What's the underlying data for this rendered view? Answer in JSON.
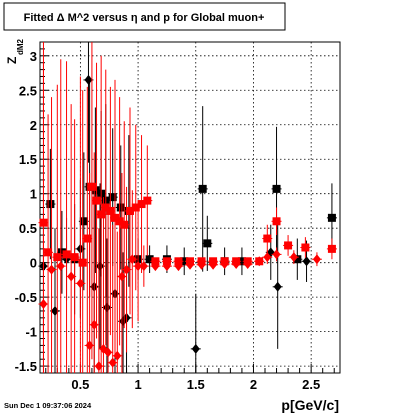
{
  "chart_data": {
    "type": "scatter",
    "title": "Fitted Δ M^2 versus η and p for Global muon+",
    "xlabel": "p[GeV/c]",
    "ylabel_main": "Z",
    "ylabel_sub": "dM2",
    "xlim": [
      0.15,
      2.75
    ],
    "ylim": [
      -1.6,
      3.2
    ],
    "x_ticks": [
      "0.5",
      "1",
      "1.5",
      "2",
      "2.5"
    ],
    "y_ticks": [
      "-1.5",
      "-1",
      "-0.5",
      "0",
      "0.5",
      "1",
      "1.5",
      "2",
      "2.5",
      "3"
    ],
    "grid": true,
    "series": [
      {
        "color": "#000000",
        "marker": "square",
        "points": [
          {
            "x": 0.24,
            "y": 0.85,
            "e": 0.8
          },
          {
            "x": 0.34,
            "y": 0.15,
            "e": 0.6
          },
          {
            "x": 0.45,
            "y": 0.05,
            "e": 0.8
          },
          {
            "x": 0.53,
            "y": 0.6,
            "e": 1.0
          },
          {
            "x": 0.58,
            "y": 1.1,
            "e": 1.6
          },
          {
            "x": 0.63,
            "y": 1.05,
            "e": 1.2
          },
          {
            "x": 0.68,
            "y": 1.0,
            "e": 1.2
          },
          {
            "x": 0.72,
            "y": 0.9,
            "e": 1.4
          },
          {
            "x": 0.78,
            "y": 0.95,
            "e": 1.0
          },
          {
            "x": 0.85,
            "y": 0.8,
            "e": 0.9
          },
          {
            "x": 0.92,
            "y": 0.75,
            "e": 1.1
          },
          {
            "x": 1.0,
            "y": 0.05,
            "e": 0.3
          },
          {
            "x": 1.1,
            "y": 0.05,
            "e": 0.2
          },
          {
            "x": 1.25,
            "y": 0.05,
            "e": 0.2
          },
          {
            "x": 1.4,
            "y": 0.02,
            "e": 0.2
          },
          {
            "x": 1.56,
            "y": 1.07,
            "e": 1.2
          },
          {
            "x": 1.6,
            "y": 0.28,
            "e": 0.4
          },
          {
            "x": 1.75,
            "y": 0.02,
            "e": 0.2
          },
          {
            "x": 1.9,
            "y": 0.02,
            "e": 0.2
          },
          {
            "x": 2.2,
            "y": 1.07,
            "e": 0.9
          },
          {
            "x": 2.38,
            "y": 0.05,
            "e": 0.3
          },
          {
            "x": 2.68,
            "y": 0.65,
            "e": 0.5
          }
        ]
      },
      {
        "color": "#000000",
        "marker": "diamond",
        "points": [
          {
            "x": 0.18,
            "y": -0.05,
            "e": 1.0
          },
          {
            "x": 0.28,
            "y": -0.7,
            "e": 1.2
          },
          {
            "x": 0.38,
            "y": 0.05,
            "e": 0.6
          },
          {
            "x": 0.5,
            "y": 0.2,
            "e": 1.0
          },
          {
            "x": 0.57,
            "y": 2.65,
            "e": 1.2
          },
          {
            "x": 0.62,
            "y": -0.35,
            "e": 1.4
          },
          {
            "x": 0.67,
            "y": -0.05,
            "e": 1.2
          },
          {
            "x": 0.73,
            "y": -0.65,
            "e": 1.0
          },
          {
            "x": 0.8,
            "y": -0.45,
            "e": 1.2
          },
          {
            "x": 0.87,
            "y": -0.85,
            "e": 1.0
          },
          {
            "x": 0.9,
            "y": -0.8,
            "e": 0.8
          },
          {
            "x": 1.5,
            "y": -1.25,
            "e": 0.8
          },
          {
            "x": 2.15,
            "y": 0.15,
            "e": 0.4
          },
          {
            "x": 2.21,
            "y": -0.35,
            "e": 0.9
          },
          {
            "x": 2.46,
            "y": 0.02,
            "e": 0.3
          }
        ]
      },
      {
        "color": "#ff0000",
        "marker": "square",
        "points": [
          {
            "x": 0.18,
            "y": 0.58,
            "e": 3.0
          },
          {
            "x": 0.22,
            "y": 0.15,
            "e": 2.0
          },
          {
            "x": 0.3,
            "y": 0.08,
            "e": 2.5
          },
          {
            "x": 0.38,
            "y": 0.12,
            "e": 2.8
          },
          {
            "x": 0.45,
            "y": 0.08,
            "e": 2.0
          },
          {
            "x": 0.52,
            "y": 0.0,
            "e": 2.5
          },
          {
            "x": 0.56,
            "y": 0.35,
            "e": 2.2
          },
          {
            "x": 0.6,
            "y": 1.1,
            "e": 2.5
          },
          {
            "x": 0.64,
            "y": 0.9,
            "e": 2.0
          },
          {
            "x": 0.68,
            "y": 0.7,
            "e": 2.3
          },
          {
            "x": 0.72,
            "y": 0.8,
            "e": 2.0
          },
          {
            "x": 0.76,
            "y": 0.75,
            "e": 1.8
          },
          {
            "x": 0.8,
            "y": 0.65,
            "e": 2.0
          },
          {
            "x": 0.84,
            "y": 0.6,
            "e": 1.8
          },
          {
            "x": 0.88,
            "y": 0.55,
            "e": 1.5
          },
          {
            "x": 0.93,
            "y": 0.75,
            "e": 1.5
          },
          {
            "x": 0.98,
            "y": 0.8,
            "e": 1.2
          },
          {
            "x": 1.03,
            "y": 0.85,
            "e": 1.0
          },
          {
            "x": 1.08,
            "y": 0.9,
            "e": 0.8
          },
          {
            "x": 1.15,
            "y": 0.02,
            "e": 0.05
          },
          {
            "x": 1.25,
            "y": 0.02,
            "e": 0.05
          },
          {
            "x": 1.35,
            "y": 0.02,
            "e": 0.05
          },
          {
            "x": 1.45,
            "y": 0.02,
            "e": 0.05
          },
          {
            "x": 1.55,
            "y": 0.02,
            "e": 0.05
          },
          {
            "x": 1.65,
            "y": 0.02,
            "e": 0.05
          },
          {
            "x": 1.75,
            "y": 0.02,
            "e": 0.05
          },
          {
            "x": 1.85,
            "y": 0.02,
            "e": 0.05
          },
          {
            "x": 1.95,
            "y": 0.02,
            "e": 0.05
          },
          {
            "x": 2.05,
            "y": 0.02,
            "e": 0.05
          },
          {
            "x": 2.12,
            "y": 0.35,
            "e": 0.2
          },
          {
            "x": 2.2,
            "y": 0.6,
            "e": 0.2
          },
          {
            "x": 2.3,
            "y": 0.25,
            "e": 0.15
          },
          {
            "x": 2.45,
            "y": 0.22,
            "e": 0.15
          },
          {
            "x": 2.68,
            "y": 0.2,
            "e": 0.15
          }
        ]
      },
      {
        "color": "#ff0000",
        "marker": "diamond",
        "points": [
          {
            "x": 0.18,
            "y": -0.6,
            "e": 3.5
          },
          {
            "x": 0.25,
            "y": -0.1,
            "e": 2.5
          },
          {
            "x": 0.33,
            "y": -0.05,
            "e": 3.0
          },
          {
            "x": 0.42,
            "y": -0.2,
            "e": 2.5
          },
          {
            "x": 0.5,
            "y": -0.3,
            "e": 3.0
          },
          {
            "x": 0.58,
            "y": -1.2,
            "e": 2.5
          },
          {
            "x": 0.62,
            "y": -0.9,
            "e": 2.5
          },
          {
            "x": 0.66,
            "y": -1.5,
            "e": 2.0
          },
          {
            "x": 0.7,
            "y": -1.25,
            "e": 2.2
          },
          {
            "x": 0.74,
            "y": -1.3,
            "e": 2.0
          },
          {
            "x": 0.78,
            "y": -1.45,
            "e": 2.0
          },
          {
            "x": 0.82,
            "y": -1.35,
            "e": 1.8
          },
          {
            "x": 0.86,
            "y": -0.2,
            "e": 1.5
          },
          {
            "x": 0.9,
            "y": -0.1,
            "e": 1.2
          },
          {
            "x": 0.95,
            "y": 0.05,
            "e": 1.0
          },
          {
            "x": 1.0,
            "y": -0.05,
            "e": 0.8
          },
          {
            "x": 1.05,
            "y": -0.05,
            "e": 0.3
          },
          {
            "x": 1.15,
            "y": -0.05,
            "e": 0.05
          },
          {
            "x": 1.25,
            "y": -0.05,
            "e": 0.05
          },
          {
            "x": 1.35,
            "y": -0.05,
            "e": 0.05
          },
          {
            "x": 1.45,
            "y": -0.03,
            "e": 0.05
          },
          {
            "x": 1.55,
            "y": -0.03,
            "e": 0.05
          },
          {
            "x": 1.65,
            "y": -0.03,
            "e": 0.05
          },
          {
            "x": 1.75,
            "y": -0.02,
            "e": 0.05
          },
          {
            "x": 1.85,
            "y": -0.02,
            "e": 0.05
          },
          {
            "x": 1.95,
            "y": -0.02,
            "e": 0.05
          },
          {
            "x": 2.05,
            "y": 0.02,
            "e": 0.05
          },
          {
            "x": 2.12,
            "y": 0.08,
            "e": 0.1
          },
          {
            "x": 2.2,
            "y": 0.12,
            "e": 0.1
          },
          {
            "x": 2.35,
            "y": 0.08,
            "e": 0.1
          },
          {
            "x": 2.55,
            "y": 0.05,
            "e": 0.1
          }
        ]
      }
    ]
  },
  "footer": {
    "timestamp": "Sun Dec  1 09:37:06 2024"
  }
}
